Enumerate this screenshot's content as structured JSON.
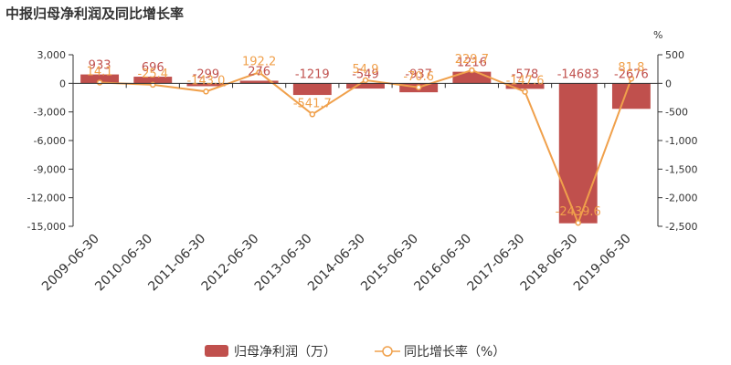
{
  "chart_data": {
    "type": "bar",
    "title": "中报归母净利润及同比增长率",
    "categories": [
      "2009-06-30",
      "2010-06-30",
      "2011-06-30",
      "2012-06-30",
      "2013-06-30",
      "2014-06-30",
      "2015-06-30",
      "2016-06-30",
      "2017-06-30",
      "2018-06-30",
      "2019-06-30"
    ],
    "series": [
      {
        "name": "归母净利润（万）",
        "type": "bar",
        "axis": "left",
        "color": "#c0504d",
        "values": [
          933,
          696,
          -299,
          276,
          -1219,
          -549,
          -937,
          1216,
          -578,
          -14683,
          -2676
        ],
        "labels": [
          "933",
          "696",
          "-299",
          "276",
          "-1219",
          "-549",
          "-937",
          "1216",
          "-578",
          "-14683",
          "-2676"
        ]
      },
      {
        "name": "同比增长率（%）",
        "type": "line",
        "axis": "right",
        "color": "#f0a04b",
        "values": [
          14.1,
          -25.4,
          -143.0,
          192.2,
          -541.7,
          54.9,
          -70.6,
          229.7,
          -147.6,
          -2439.6,
          81.8
        ],
        "labels": [
          "14.1",
          "-25.4",
          "-143.0",
          "192.2",
          "-541.7",
          "54.9",
          "-70.6",
          "229.7",
          "-147.6",
          "-2439.6",
          "81.8"
        ]
      }
    ],
    "y_left": {
      "min": -15000,
      "max": 3000,
      "ticks": [
        3000,
        0,
        -3000,
        -6000,
        -9000,
        -12000,
        -15000
      ],
      "tick_labels": [
        "3,000",
        "0",
        "-3,000",
        "-6,000",
        "-9,000",
        "-12,000",
        "-15,000"
      ]
    },
    "y_right": {
      "min": -2500,
      "max": 500,
      "unit": "%",
      "ticks": [
        500,
        0,
        -500,
        -1000,
        -1500,
        -2000,
        -2500
      ],
      "tick_labels": [
        "500",
        "0",
        "-500",
        "-1,000",
        "-1,500",
        "-2,000",
        "-2,500"
      ]
    },
    "legend": {
      "position": "bottom",
      "items": [
        "归母净利润（万）",
        "同比增长率（%）"
      ]
    },
    "grid": false
  }
}
